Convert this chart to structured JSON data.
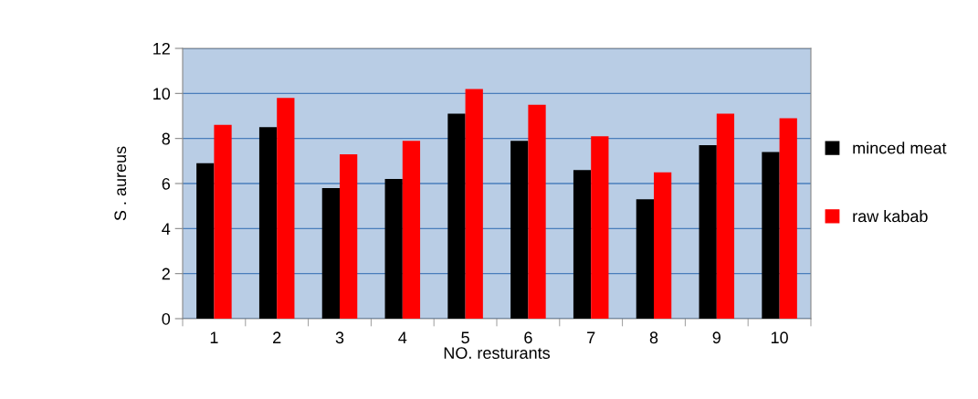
{
  "chart_data": {
    "type": "bar",
    "xlabel": "NO. resturants",
    "ylabel": "S . aureus",
    "categories": [
      "1",
      "2",
      "3",
      "4",
      "5",
      "6",
      "7",
      "8",
      "9",
      "10"
    ],
    "series": [
      {
        "name": "minced meat",
        "color": "#000000",
        "values": [
          6.9,
          8.5,
          5.8,
          6.2,
          9.1,
          7.9,
          6.6,
          5.3,
          7.7,
          7.4
        ]
      },
      {
        "name": "raw kabab",
        "color": "#ff0000",
        "values": [
          8.6,
          9.8,
          7.3,
          7.9,
          10.2,
          9.5,
          8.1,
          6.5,
          9.1,
          8.9
        ]
      }
    ],
    "ylim": [
      0,
      12
    ],
    "yticks": [
      0,
      2,
      4,
      6,
      8,
      10,
      12
    ],
    "grid": "y",
    "legend": "right"
  }
}
